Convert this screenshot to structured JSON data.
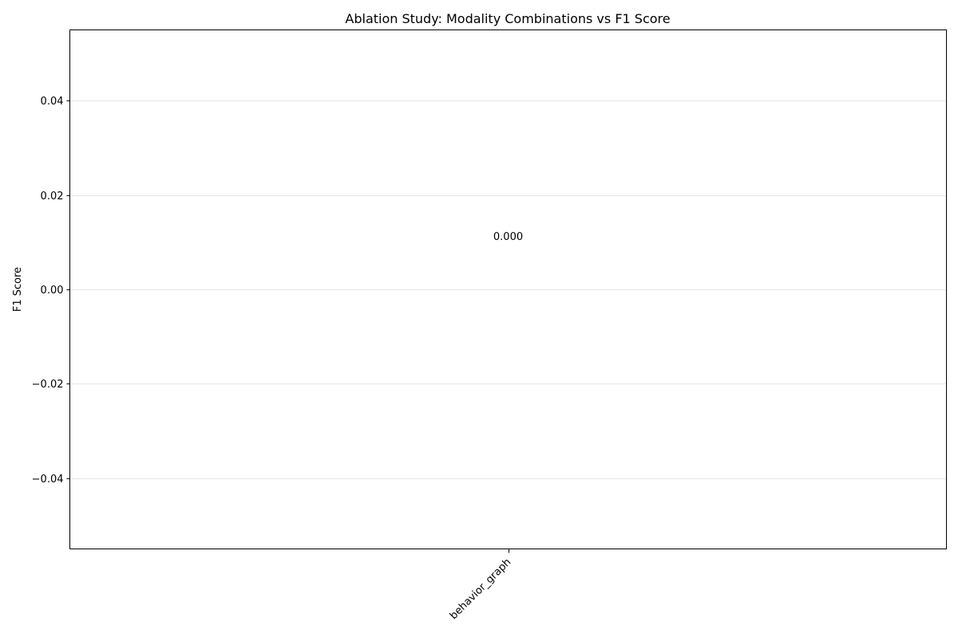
{
  "chart_data": {
    "type": "bar",
    "title": "Ablation Study: Modality Combinations vs F1 Score",
    "xlabel": "",
    "ylabel": "F1 Score",
    "categories": [
      "behavior_graph"
    ],
    "values": [
      0.0
    ],
    "data_labels": [
      "0.000"
    ],
    "ylim": [
      -0.055,
      0.055
    ],
    "yticks": [
      -0.04,
      -0.02,
      0.0,
      0.02,
      0.04
    ],
    "ytick_labels": [
      "−0.04",
      "−0.02",
      "0.00",
      "0.02",
      "0.04"
    ],
    "grid": "y",
    "legend": "none"
  },
  "colors": {
    "bar": "#1f77b4",
    "grid": "#e6e6e6",
    "axis": "#000000"
  }
}
